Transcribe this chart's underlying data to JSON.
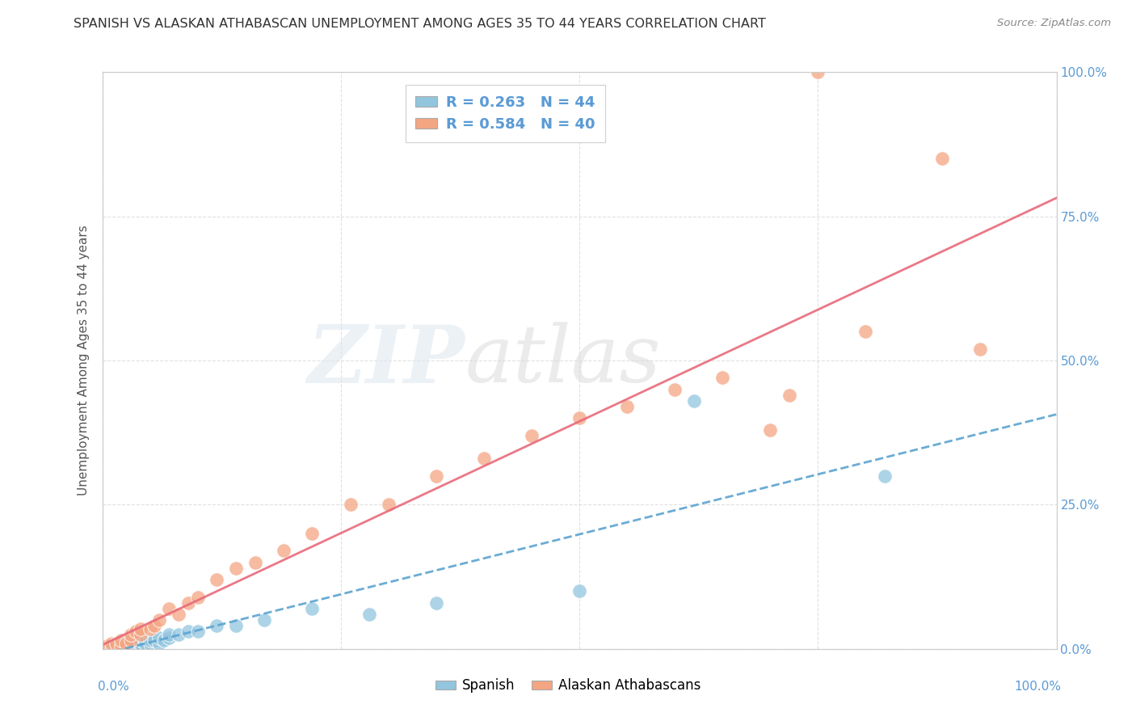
{
  "title": "SPANISH VS ALASKAN ATHABASCAN UNEMPLOYMENT AMONG AGES 35 TO 44 YEARS CORRELATION CHART",
  "source": "Source: ZipAtlas.com",
  "ylabel": "Unemployment Among Ages 35 to 44 years",
  "legend_spanish_r": "0.263",
  "legend_spanish_n": "44",
  "legend_athabascan_r": "0.584",
  "legend_athabascan_n": "40",
  "spanish_color": "#92c5de",
  "athabascan_color": "#f4a582",
  "spanish_line_color": "#5ba3d0",
  "athabascan_line_color": "#e8697a",
  "background_color": "#ffffff",
  "grid_color": "#dddddd",
  "spanish_x": [
    0.0,
    0.005,
    0.01,
    0.01,
    0.01,
    0.015,
    0.02,
    0.02,
    0.02,
    0.02,
    0.025,
    0.025,
    0.03,
    0.03,
    0.03,
    0.03,
    0.03,
    0.035,
    0.035,
    0.04,
    0.04,
    0.04,
    0.04,
    0.045,
    0.05,
    0.05,
    0.055,
    0.06,
    0.06,
    0.065,
    0.07,
    0.07,
    0.08,
    0.09,
    0.1,
    0.12,
    0.14,
    0.17,
    0.22,
    0.28,
    0.35,
    0.5,
    0.62,
    0.82
  ],
  "spanish_y": [
    0.0,
    0.0,
    0.0,
    0.0,
    0.005,
    0.0,
    0.0,
    0.0,
    0.005,
    0.01,
    0.0,
    0.005,
    0.0,
    0.0,
    0.005,
    0.01,
    0.01,
    0.005,
    0.01,
    0.0,
    0.005,
    0.01,
    0.015,
    0.01,
    0.01,
    0.015,
    0.015,
    0.01,
    0.02,
    0.015,
    0.02,
    0.025,
    0.025,
    0.03,
    0.03,
    0.04,
    0.04,
    0.05,
    0.07,
    0.06,
    0.08,
    0.1,
    0.43,
    0.3
  ],
  "athabascan_x": [
    0.0,
    0.005,
    0.01,
    0.01,
    0.015,
    0.02,
    0.02,
    0.025,
    0.03,
    0.03,
    0.035,
    0.04,
    0.04,
    0.05,
    0.055,
    0.06,
    0.07,
    0.08,
    0.09,
    0.1,
    0.12,
    0.14,
    0.16,
    0.19,
    0.22,
    0.26,
    0.3,
    0.35,
    0.4,
    0.45,
    0.5,
    0.55,
    0.6,
    0.65,
    0.7,
    0.72,
    0.75,
    0.8,
    0.88,
    0.92
  ],
  "athabascan_y": [
    0.0,
    0.005,
    0.0,
    0.01,
    0.01,
    0.005,
    0.015,
    0.01,
    0.015,
    0.025,
    0.03,
    0.025,
    0.035,
    0.035,
    0.04,
    0.05,
    0.07,
    0.06,
    0.08,
    0.09,
    0.12,
    0.14,
    0.15,
    0.17,
    0.2,
    0.25,
    0.25,
    0.3,
    0.33,
    0.37,
    0.4,
    0.42,
    0.45,
    0.47,
    0.38,
    0.44,
    1.0,
    0.55,
    0.85,
    0.52
  ],
  "xlim": [
    0.0,
    1.0
  ],
  "ylim": [
    0.0,
    1.0
  ],
  "xticks": [
    0.0,
    0.25,
    0.5,
    0.75,
    1.0
  ],
  "yticks": [
    0.0,
    0.25,
    0.5,
    0.75,
    1.0
  ],
  "right_tick_labels": [
    "0.0%",
    "25.0%",
    "50.0%",
    "75.0%",
    "100.0%"
  ]
}
